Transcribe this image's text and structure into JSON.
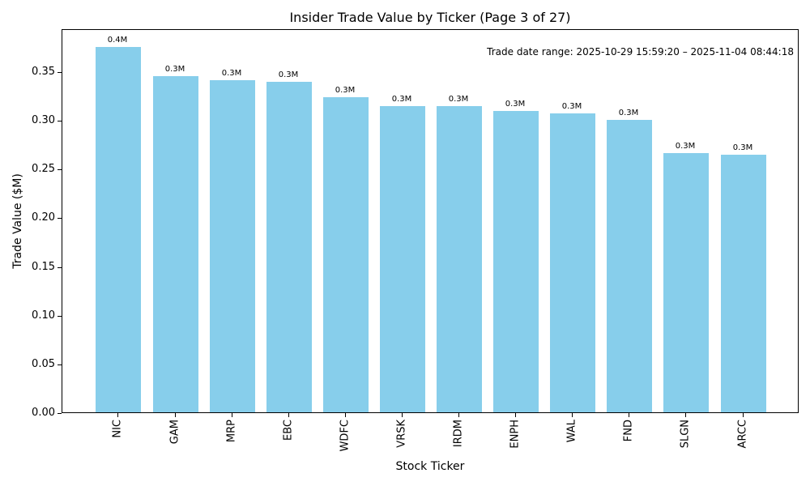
{
  "chart_data": {
    "type": "bar",
    "title": "Insider Trade Value by Ticker (Page 3 of 27)",
    "xlabel": "Stock Ticker",
    "ylabel": "Trade Value ($M)",
    "annotation": "Trade date range: 2025-10-29 15:59:20 – 2025-11-04 08:44:18",
    "categories": [
      "NIC",
      "GAM",
      "MRP",
      "EBC",
      "WDFC",
      "VRSK",
      "IRDM",
      "ENPH",
      "WAL",
      "FND",
      "SLGN",
      "ARCC"
    ],
    "values": [
      0.375,
      0.345,
      0.341,
      0.339,
      0.323,
      0.314,
      0.314,
      0.309,
      0.307,
      0.3,
      0.266,
      0.264
    ],
    "bar_labels": [
      "0.4M",
      "0.3M",
      "0.3M",
      "0.3M",
      "0.3M",
      "0.3M",
      "0.3M",
      "0.3M",
      "0.3M",
      "0.3M",
      "0.3M",
      "0.3M"
    ],
    "yticks": [
      "0.00",
      "0.05",
      "0.10",
      "0.15",
      "0.20",
      "0.25",
      "0.30",
      "0.35"
    ],
    "ylim": [
      0,
      0.394
    ],
    "bar_color": "#87CEEB",
    "grid": false,
    "legend_position": "none"
  }
}
